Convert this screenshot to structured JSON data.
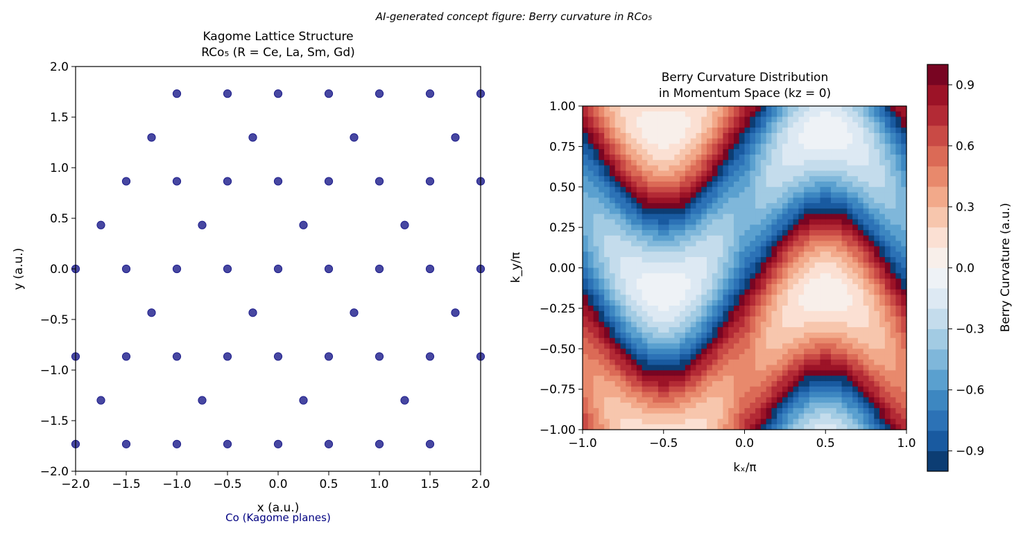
{
  "figure": {
    "suptitle": "AI-generated concept figure: Berry curvature in RCo₅"
  },
  "chart_data": [
    {
      "type": "scatter",
      "title_line1": "Kagome Lattice Structure",
      "title_line2": "RCo₅ (R = Ce, La, Sm, Gd)",
      "xlabel": "x (a.u.)",
      "ylabel": "y (a.u.)",
      "xlim": [
        -2,
        2
      ],
      "ylim": [
        -2,
        2
      ],
      "xticks": [
        -2,
        -1.5,
        -1,
        -0.5,
        0,
        0.5,
        1,
        1.5,
        2
      ],
      "yticks": [
        -2,
        -1.5,
        -1,
        -0.5,
        0,
        0.5,
        1,
        1.5,
        2
      ],
      "xtick_labels": [
        "−2.0",
        "−1.5",
        "−1.0",
        "−0.5",
        "0.0",
        "0.5",
        "1.0",
        "1.5",
        "2.0"
      ],
      "ytick_labels": [
        "−2.0",
        "−1.5",
        "−1.0",
        "−0.5",
        "0.0",
        "0.5",
        "1.0",
        "1.5",
        "2.0"
      ],
      "marker_color": "#1f1f8c",
      "annotation": "Co (Kagome planes)",
      "annotation_color": "#000080",
      "points": [
        [
          -1.0,
          1.732
        ],
        [
          -0.5,
          1.732
        ],
        [
          0.0,
          1.732
        ],
        [
          0.5,
          1.732
        ],
        [
          1.0,
          1.732
        ],
        [
          1.5,
          1.732
        ],
        [
          2.0,
          1.732
        ],
        [
          -1.25,
          1.299
        ],
        [
          -0.25,
          1.299
        ],
        [
          0.75,
          1.299
        ],
        [
          1.75,
          1.299
        ],
        [
          -1.5,
          0.866
        ],
        [
          -1.0,
          0.866
        ],
        [
          -0.5,
          0.866
        ],
        [
          0.0,
          0.866
        ],
        [
          0.5,
          0.866
        ],
        [
          1.0,
          0.866
        ],
        [
          1.5,
          0.866
        ],
        [
          2.0,
          0.866
        ],
        [
          -1.75,
          0.433
        ],
        [
          -0.75,
          0.433
        ],
        [
          0.25,
          0.433
        ],
        [
          1.25,
          0.433
        ],
        [
          -2.0,
          0.0
        ],
        [
          -1.5,
          0.0
        ],
        [
          -1.0,
          0.0
        ],
        [
          -0.5,
          0.0
        ],
        [
          0.0,
          0.0
        ],
        [
          0.5,
          0.0
        ],
        [
          1.0,
          0.0
        ],
        [
          1.5,
          0.0
        ],
        [
          2.0,
          0.0
        ],
        [
          -1.25,
          -0.433
        ],
        [
          -0.25,
          -0.433
        ],
        [
          0.75,
          -0.433
        ],
        [
          1.75,
          -0.433
        ],
        [
          -2.0,
          -0.866
        ],
        [
          -1.5,
          -0.866
        ],
        [
          -1.0,
          -0.866
        ],
        [
          -0.5,
          -0.866
        ],
        [
          0.0,
          -0.866
        ],
        [
          0.5,
          -0.866
        ],
        [
          1.0,
          -0.866
        ],
        [
          1.5,
          -0.866
        ],
        [
          2.0,
          -0.866
        ],
        [
          -1.75,
          -1.299
        ],
        [
          -0.75,
          -1.299
        ],
        [
          0.25,
          -1.299
        ],
        [
          1.25,
          -1.299
        ],
        [
          -2.0,
          -1.732
        ],
        [
          -1.5,
          -1.732
        ],
        [
          -1.0,
          -1.732
        ],
        [
          -0.5,
          -1.732
        ],
        [
          0.0,
          -1.732
        ],
        [
          0.5,
          -1.732
        ],
        [
          1.0,
          -1.732
        ],
        [
          1.5,
          -1.732
        ]
      ]
    },
    {
      "type": "heatmap",
      "title_line1": "Berry Curvature Distribution",
      "title_line2": "in Momentum Space (kz = 0)",
      "xlabel": "kₓ/π",
      "ylabel": "k_y/π",
      "xlim": [
        -1,
        1
      ],
      "ylim": [
        -1,
        1
      ],
      "xticks": [
        -1,
        -0.5,
        0,
        0.5,
        1
      ],
      "yticks": [
        -1,
        -0.75,
        -0.5,
        -0.25,
        0,
        0.25,
        0.5,
        0.75,
        1
      ],
      "xtick_labels": [
        "−1.0",
        "−0.5",
        "0.0",
        "0.5",
        "1.0"
      ],
      "ytick_labels": [
        "−1.00",
        "−0.75",
        "−0.50",
        "−0.25",
        "0.00",
        "0.25",
        "0.50",
        "0.75",
        "1.00"
      ],
      "function": "tanh(sin(pi*kx) - 2.5*ky) * cos(pi*ky), sign convention: positive (red) between curve ky = 0.4*sin(pi*kx) and curve shifted by +1, with wrapped lobes",
      "colormap": "RdBu_r",
      "colorbar": {
        "label": "Berry Curvature (a.u.)",
        "range": [
          -1,
          1
        ],
        "ticks": [
          -0.9,
          -0.6,
          -0.3,
          0.0,
          0.3,
          0.6,
          0.9
        ],
        "tick_labels": [
          "−0.9",
          "−0.6",
          "−0.3",
          "0.0",
          "0.3",
          "0.6",
          "0.9"
        ],
        "levels": [
          -1.0,
          -0.9,
          -0.8,
          -0.7,
          -0.6,
          -0.5,
          -0.4,
          -0.3,
          -0.2,
          -0.1,
          0.0,
          0.1,
          0.2,
          0.3,
          0.4,
          0.5,
          0.6,
          0.7,
          0.8,
          0.9,
          1.0
        ],
        "colors": [
          "#0c3d73",
          "#195aa0",
          "#2c72b6",
          "#3d87c1",
          "#5aa0cf",
          "#7fb7da",
          "#a2cbe3",
          "#c4dcec",
          "#dde9f3",
          "#eef2f6",
          "#f8efea",
          "#fbe0d3",
          "#f7c6ad",
          "#f2a98a",
          "#e8896c",
          "#db6a56",
          "#c94a45",
          "#b32a35",
          "#9c1327",
          "#780522"
        ]
      }
    }
  ]
}
